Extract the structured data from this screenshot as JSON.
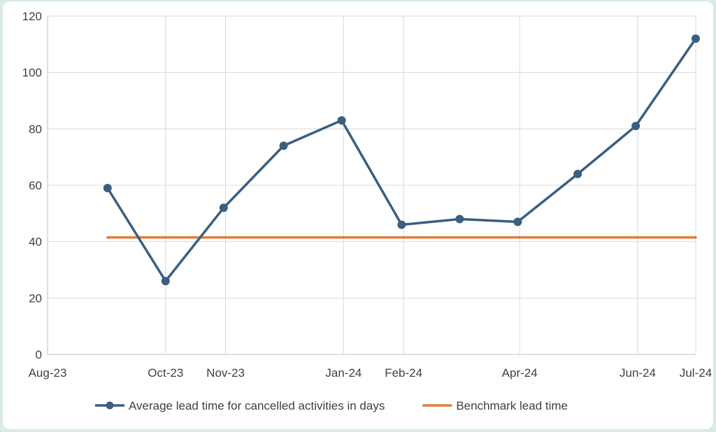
{
  "chart_data": {
    "type": "line",
    "x_type": "date",
    "xlim": [
      "2023-08-01",
      "2024-07-01"
    ],
    "x_ticks": [
      "2023-08-01",
      "2023-10-01",
      "2023-11-01",
      "2024-01-01",
      "2024-02-01",
      "2024-04-01",
      "2024-06-01",
      "2024-07-01"
    ],
    "x_tick_labels": [
      "Aug-23",
      "Oct-23",
      "Nov-23",
      "Jan-24",
      "Feb-24",
      "Apr-24",
      "Jun-24",
      "Jul-24"
    ],
    "ylim": [
      0,
      120
    ],
    "y_ticks": [
      0,
      20,
      40,
      60,
      80,
      100,
      120
    ],
    "y_tick_labels": [
      "0",
      "20",
      "40",
      "60",
      "80",
      "100",
      "120"
    ],
    "grid": true,
    "legend_position": "bottom",
    "series": [
      {
        "name": "Average lead time for cancelled activities in days",
        "color": "#3a5f7f",
        "markers": true,
        "points": [
          {
            "x": "2023-09-01",
            "y": 59
          },
          {
            "x": "2023-10-01",
            "y": 26
          },
          {
            "x": "2023-10-31",
            "y": 52
          },
          {
            "x": "2023-12-01",
            "y": 74
          },
          {
            "x": "2023-12-31",
            "y": 83
          },
          {
            "x": "2024-01-31",
            "y": 46
          },
          {
            "x": "2024-03-01",
            "y": 48
          },
          {
            "x": "2024-03-31",
            "y": 47
          },
          {
            "x": "2024-05-01",
            "y": 64
          },
          {
            "x": "2024-05-31",
            "y": 81
          },
          {
            "x": "2024-07-01",
            "y": 112
          }
        ]
      },
      {
        "name": "Benchmark lead time",
        "color": "#e07b3a",
        "markers": false,
        "points": [
          {
            "x": "2023-09-01",
            "y": 41.5
          },
          {
            "x": "2024-07-01",
            "y": 41.5
          }
        ]
      }
    ]
  }
}
